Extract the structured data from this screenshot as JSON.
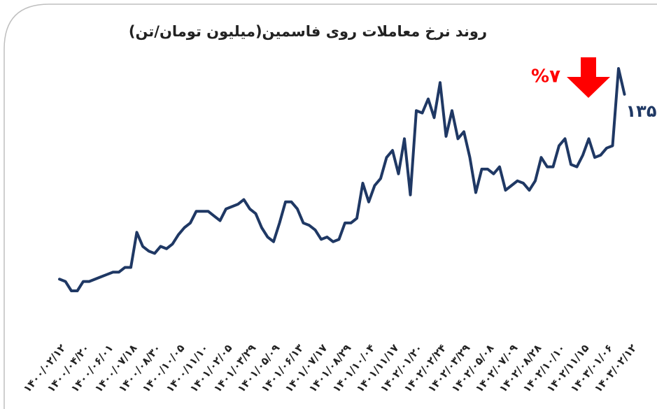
{
  "chart_data": {
    "type": "line",
    "title": "روند نرخ معاملات روی فاسمین(میلیون تومان/تن)",
    "annotations": [
      {
        "text": "%۷",
        "color": "#ff0000"
      }
    ],
    "categories": [
      "۱۴۰۰/۰۲/۱۲",
      null,
      null,
      null,
      "۱۴۰۰/۰۴/۲۰",
      null,
      null,
      null,
      "۱۴۰۰/۰۶/۰۱",
      null,
      null,
      null,
      "۱۴۰۰/۰۷/۱۸",
      null,
      null,
      null,
      "۱۴۰۰/۰۸/۳۰",
      null,
      null,
      null,
      "۱۴۰۰/۱۰/۰۵",
      null,
      null,
      null,
      "۱۴۰۰/۱۱/۱۰",
      null,
      null,
      null,
      "۱۴۰۱/۰۲/۰۵",
      null,
      null,
      null,
      "۱۴۰۱/۰۳/۲۹",
      null,
      null,
      null,
      "۱۴۰۱/۰۵/۰۹",
      null,
      null,
      null,
      "۱۴۰۱/۰۶/۱۳",
      null,
      null,
      null,
      "۱۴۰۱/۰۷/۱۷",
      null,
      null,
      null,
      "۱۴۰۱/۰۸/۲۹",
      null,
      null,
      null,
      "۱۴۰۱/۱۰/۰۴",
      null,
      null,
      null,
      "۱۴۰۱/۱۱/۱۷",
      null,
      null,
      null,
      "۱۴۰۲/۰۱/۲۰",
      null,
      null,
      null,
      "۱۴۰۲/۰۲/۲۴",
      null,
      null,
      null,
      "۱۴۰۲/۰۳/۲۹",
      null,
      null,
      null,
      "۱۴۰۲/۰۵/۰۸",
      null,
      null,
      null,
      "۱۴۰۲/۰۷/۰۹",
      null,
      null,
      null,
      "۱۴۰۲/۰۸/۲۸",
      null,
      null,
      null,
      "۱۴۰۲/۱۰/۱۰",
      null,
      null,
      null,
      "۱۴۰۲/۱۱/۱۵",
      null,
      null,
      null,
      "۱۴۰۳/۰۱/۰۶",
      null,
      null,
      null,
      "۱۴۰۳/۰۲/۱۲"
    ],
    "values": [
      56,
      55,
      51,
      51,
      55,
      55,
      56,
      57,
      58,
      59,
      59,
      61,
      61,
      76,
      70,
      68,
      67,
      70,
      69,
      71,
      75,
      78,
      80,
      85,
      85,
      85,
      83,
      81,
      86,
      87,
      88,
      90,
      86,
      84,
      78,
      74,
      72,
      80,
      89,
      89,
      86,
      80,
      79,
      77,
      73,
      74,
      72,
      73,
      80,
      80,
      82,
      97,
      89,
      96,
      99,
      108,
      111,
      101,
      116,
      92,
      128,
      127,
      133,
      125,
      140,
      117,
      128,
      116,
      119,
      108,
      93,
      103,
      103,
      101,
      104,
      94,
      96,
      98,
      97,
      94,
      98,
      108,
      104,
      104,
      113,
      116,
      105,
      104,
      109,
      116,
      108,
      109,
      112,
      113,
      146,
      135,
      null
    ],
    "value_labels": [
      null,
      null,
      null,
      null,
      null,
      null,
      null,
      null,
      null,
      null,
      null,
      null,
      null,
      null,
      null,
      null,
      null,
      null,
      null,
      null,
      null,
      null,
      null,
      null,
      null,
      null,
      null,
      null,
      null,
      null,
      null,
      null,
      null,
      null,
      null,
      null,
      null,
      null,
      null,
      null,
      null,
      null,
      null,
      null,
      null,
      null,
      null,
      null,
      null,
      null,
      null,
      null,
      null,
      null,
      null,
      null,
      null,
      null,
      null,
      null,
      null,
      null,
      null,
      null,
      null,
      null,
      null,
      null,
      null,
      null,
      null,
      null,
      null,
      null,
      null,
      null,
      null,
      null,
      null,
      null,
      null,
      null,
      null,
      null,
      null,
      null,
      null,
      null,
      null,
      null,
      null,
      null,
      null,
      null,
      null,
      "۱۳۵",
      null
    ],
    "color": "#1f3864"
  }
}
